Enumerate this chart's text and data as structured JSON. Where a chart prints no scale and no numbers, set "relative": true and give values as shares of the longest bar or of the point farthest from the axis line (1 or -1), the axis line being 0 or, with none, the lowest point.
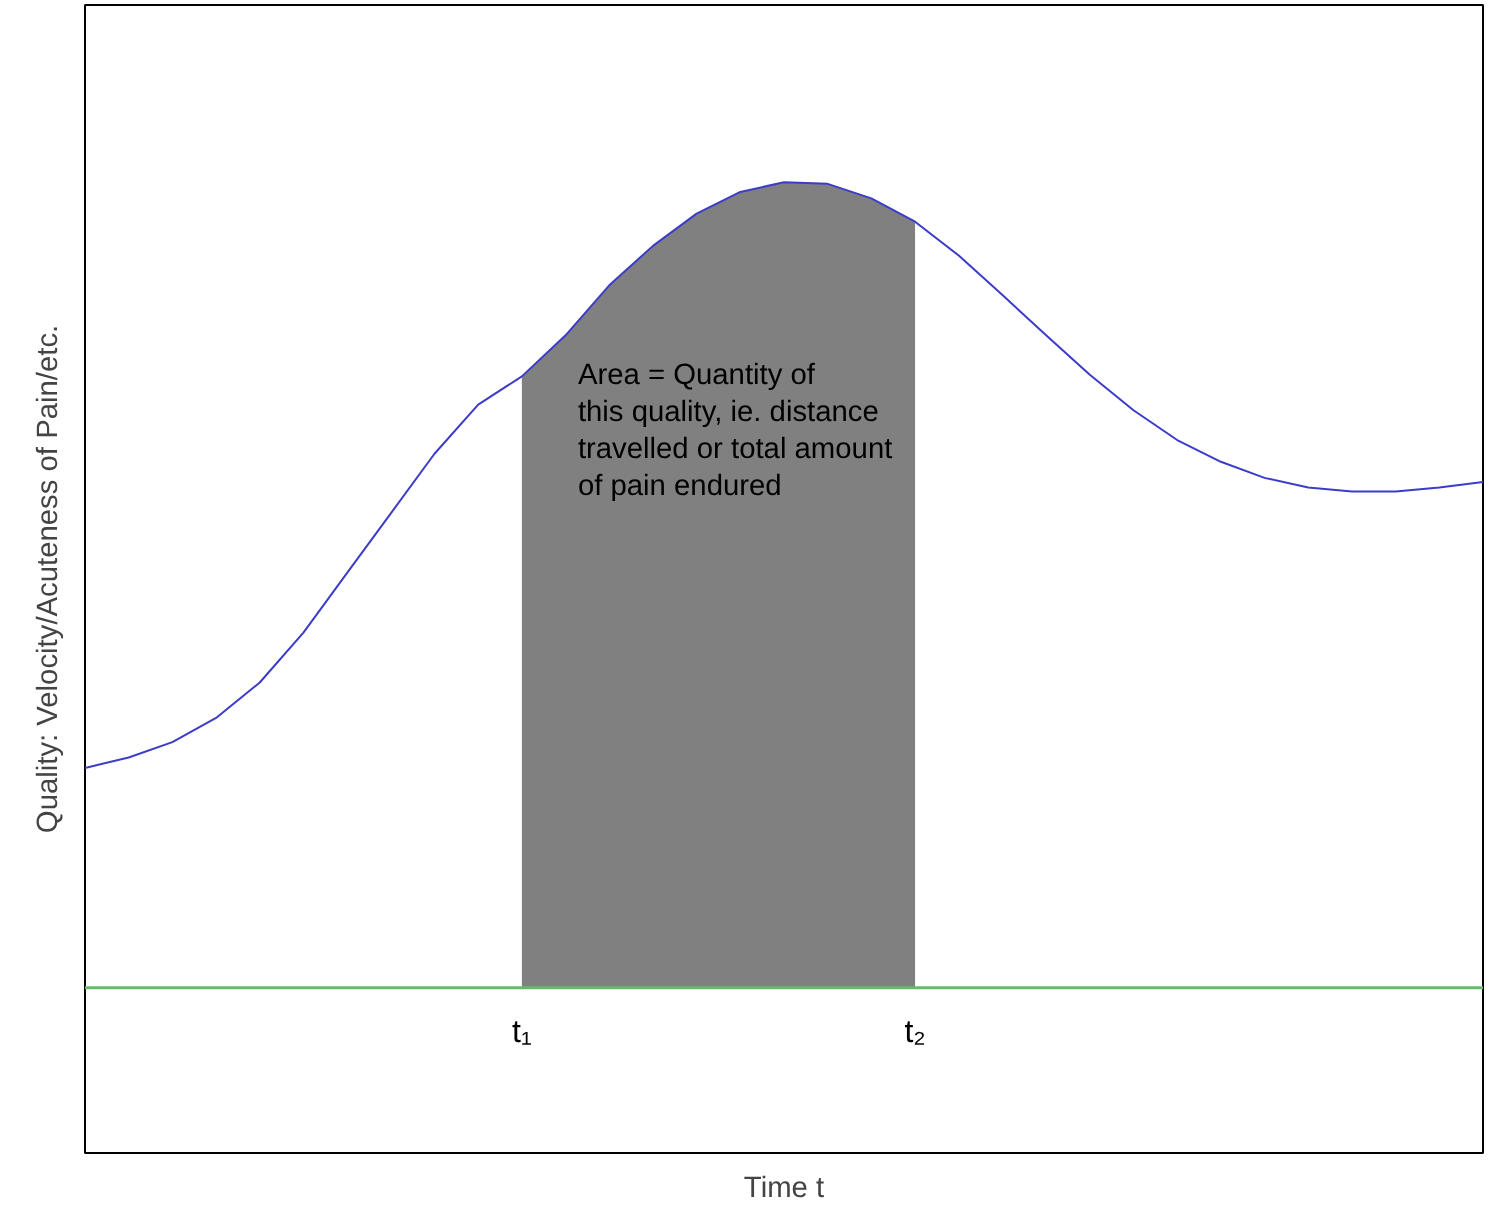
{
  "chart_data": {
    "type": "line",
    "relative": true,
    "xlabel": "Time t",
    "ylabel": "Quality: Velocity/Acuteness of Pain/etc.",
    "categories": [
      null,
      null,
      null,
      null,
      null,
      null,
      null,
      null,
      null,
      null,
      "t₁",
      null,
      null,
      null,
      null,
      null,
      null,
      null,
      null,
      "t₂",
      null,
      null,
      null,
      null,
      null,
      null,
      null,
      null,
      null,
      null,
      null,
      null,
      null
    ],
    "series": [
      {
        "color": "#3c3cc8",
        "values": [
          0.273,
          0.286,
          0.305,
          0.335,
          0.379,
          0.441,
          0.515,
          0.589,
          0.663,
          0.724,
          0.759,
          0.81,
          0.872,
          0.921,
          0.961,
          0.988,
          1.0,
          0.998,
          0.98,
          0.951,
          0.909,
          0.86,
          0.81,
          0.761,
          0.717,
          0.68,
          0.653,
          0.633,
          0.621,
          0.616,
          0.616,
          0.621,
          0.628
        ]
      },
      {
        "type": "area",
        "color": "#808080",
        "values": [
          null,
          null,
          null,
          null,
          null,
          null,
          null,
          null,
          null,
          null,
          0.759,
          0.81,
          0.872,
          0.921,
          0.961,
          0.988,
          1.0,
          0.998,
          0.98,
          0.951,
          null,
          null,
          null,
          null,
          null,
          null,
          null,
          null,
          null,
          null,
          null,
          null,
          null
        ]
      }
    ],
    "annotations": [
      "Area = Quantity of\nthis quality, ie. distance\ntravelled or total amount\nof pain endured"
    ],
    "tick_labels": "x",
    "grid": false
  }
}
